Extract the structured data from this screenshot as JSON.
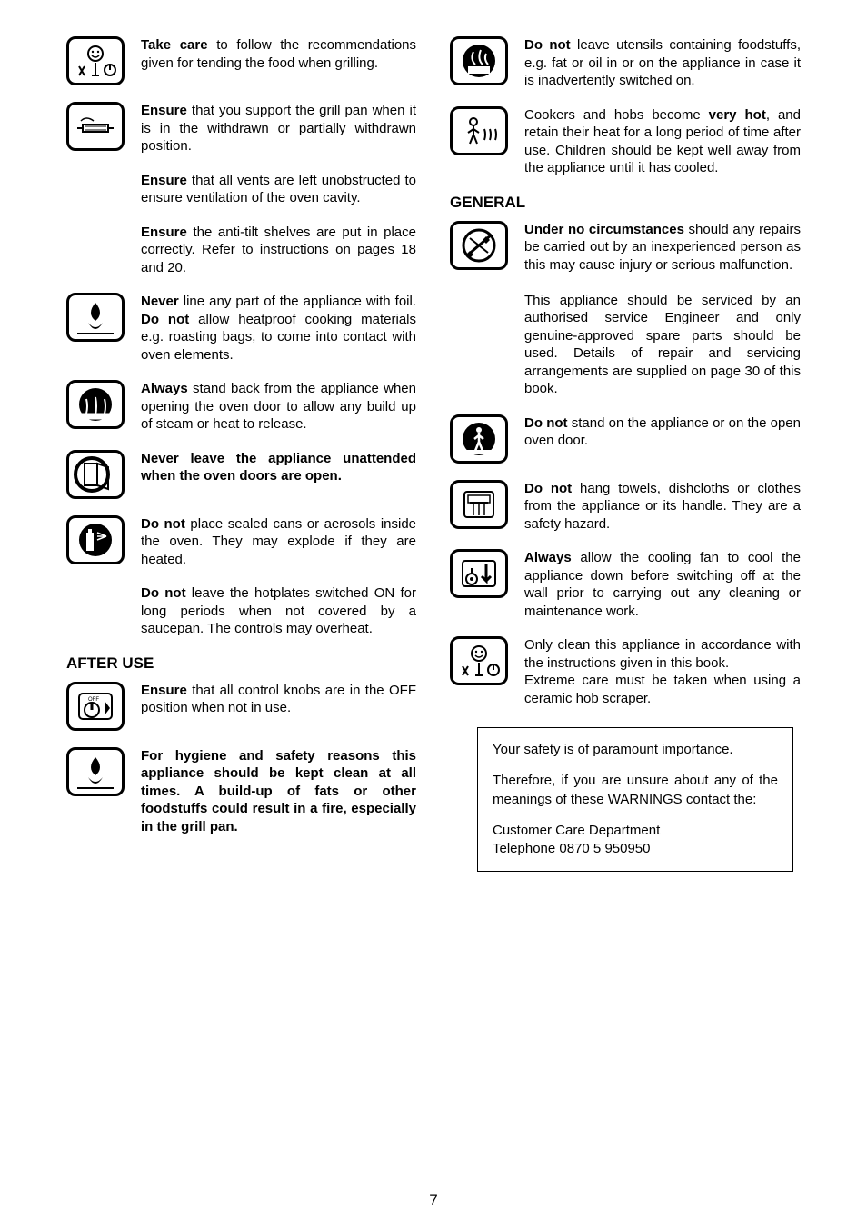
{
  "page_number": "7",
  "left": {
    "items": [
      {
        "icon": "smile-knobs",
        "html": "<span class='b'>Take care</span> to follow the recommendations given for tending the food when grilling."
      },
      {
        "icon": "grill-pan",
        "html": "<span class='b'>Ensure</span> that you support the grill pan when it is in the withdrawn or partially withdrawn position."
      },
      {
        "icon": null,
        "html": "<span class='b'>Ensure</span> that all vents are left unobstructed to ensure ventilation of the oven cavity."
      },
      {
        "icon": null,
        "html": "<span class='b'>Ensure</span> the anti-tilt shelves are put in place correctly. Refer to instructions on pages 18 and 20."
      },
      {
        "icon": "flame",
        "html": "<span class='b'>Never</span> line any part of the appliance with foil.  <span class='b'>Do not</span> allow heatproof cooking materials e.g. roasting bags, to come into contact with oven elements."
      },
      {
        "icon": "steam",
        "html": "<span class='b'>Always</span> stand back from the appliance when opening the oven door to allow any build up of steam or heat to release."
      },
      {
        "icon": "door-open",
        "html": "<span class='b'>Never leave the appliance unattended when the oven doors are open.</span>"
      },
      {
        "icon": "aerosol",
        "html": "<span class='b'>Do not</span> place sealed cans or aerosols inside the oven.  They may explode if they are heated."
      },
      {
        "icon": null,
        "html": "<span class='b'>Do not</span> leave the hotplates switched ON for long periods when not covered by a saucepan. The controls may overheat."
      }
    ],
    "after_use_heading": "AFTER USE",
    "after_use": [
      {
        "icon": "off-knob",
        "html": "<span class='b'>Ensure</span> that all control knobs are in the OFF position when not in use."
      },
      {
        "icon": "flame",
        "html": "<span class='b'>For hygiene and safety reasons this appliance should be kept clean at all times.  A build-up of fats or other foodstuffs could result in a fire, especially in the grill pan.</span>"
      }
    ]
  },
  "right": {
    "items": [
      {
        "icon": "pot-fire",
        "html": "<span class='b'>Do not</span> leave utensils containing foodstuffs, e.g. fat or oil in or on the appliance in case it is inadvertently switched on."
      },
      {
        "icon": "child-hot",
        "html": "Cookers and hobs become <span class='b'>very hot</span>, and retain their heat for a long period of time after use.  Children should be kept well away from the appliance until it has cooled."
      }
    ],
    "general_heading": "GENERAL",
    "general": [
      {
        "icon": "no-tools",
        "html": "<span class='b'>Under no circumstances</span> should any repairs be carried out by an inexperienced person as this may cause injury or serious malfunction.<br><br>This appliance should be serviced by an authorised service Engineer and only genuine-approved spare parts should be used.  Details of repair and servicing arrangements are supplied on page 30 of this book."
      },
      {
        "icon": "no-stand",
        "html": "<span class='b'>Do not</span> stand on the appliance or on the open oven door."
      },
      {
        "icon": "towel",
        "html": "<span class='b'>Do not</span> hang towels, dishcloths or clothes from the appliance or its handle.  They are a safety hazard."
      },
      {
        "icon": "cool-down",
        "html": "<span class='b'>Always</span> allow the cooling fan to cool the appliance down before switching off at the wall prior to carrying out any cleaning or maintenance work."
      },
      {
        "icon": "smile-knobs",
        "html": "Only clean this appliance in accordance with the instructions given in this book.<br>Extreme care must be taken when using a ceramic hob scraper."
      }
    ]
  },
  "safety_box": {
    "p1": "Your safety is of paramount importance.",
    "p2": "Therefore, if you are unsure about any of the meanings of these WARNINGS contact the:",
    "p3": "Customer Care Department<br>Telephone 0870 5 950950"
  }
}
